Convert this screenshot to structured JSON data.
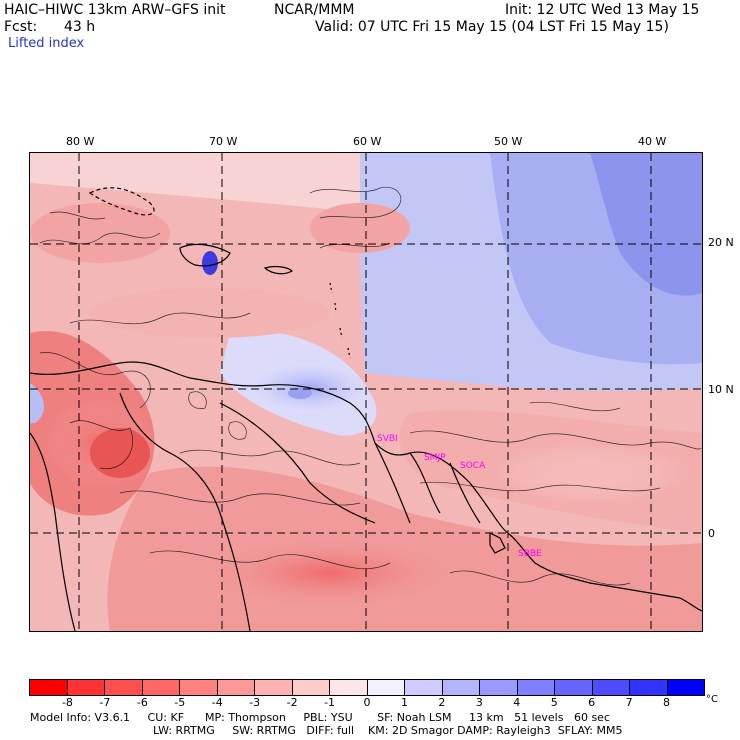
{
  "header": {
    "model_title": "HAIC–HIWC 13km ARW–GFS init",
    "org": "NCAR/MMM",
    "init": "Init: 12 UTC Wed 13 May 15",
    "fcst_label": "Fcst:",
    "fcst_value": "43 h",
    "valid": "Valid: 07 UTC Fri 15 May 15 (04 LST Fri 15 May 15)",
    "field": "Lifted index"
  },
  "map": {
    "lon_labels": [
      "80 W",
      "70 W",
      "60 W",
      "50 W",
      "40 W"
    ],
    "lat_labels": [
      "20 N",
      "10 N",
      "0"
    ],
    "stations": [
      "SVBI",
      "SMJP",
      "SOCA",
      "SBBE"
    ]
  },
  "colorbar": {
    "levels": [
      "-8",
      "-7",
      "-6",
      "-5",
      "-4",
      "-3",
      "-2",
      "-1",
      "0",
      "1",
      "2",
      "3",
      "4",
      "5",
      "6",
      "7",
      "8"
    ],
    "unit": "°C",
    "colors": [
      "#ff0000",
      "#ff3333",
      "#ff5050",
      "#ff6666",
      "#ff8080",
      "#ff9999",
      "#ffb3b3",
      "#ffcccc",
      "#ffe6e6",
      "#f2f2ff",
      "#ccccff",
      "#b3b3ff",
      "#9999ff",
      "#8080ff",
      "#6666ff",
      "#4d4dff",
      "#3333ff",
      "#0000ff"
    ]
  },
  "footer": {
    "line1": "Model Info: V3.6.1     CU: KF      MP: Thompson     PBL: YSU       SF: Noah LSM     13 km   51 levels   60 sec",
    "line2": "LW: RRTMG     SW: RRTMG   DIFF: full    KM: 2D Smagor DAMP: Rayleigh3  SFLAY: MM5"
  }
}
